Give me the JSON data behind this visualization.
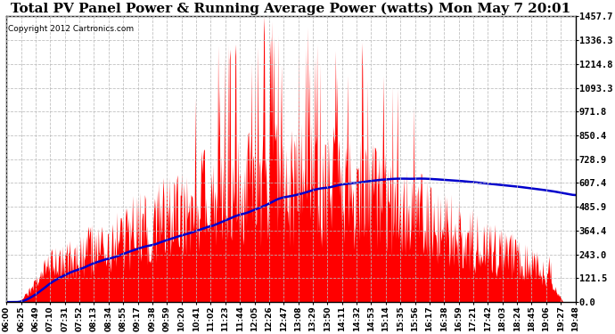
{
  "title": "Total PV Panel Power & Running Average Power (watts) Mon May 7 20:01",
  "copyright": "Copyright 2012 Cartronics.com",
  "background_color": "#ffffff",
  "plot_bg_color": "#ffffff",
  "fill_color": "#ff0000",
  "line_color": "#0000cc",
  "grid_color": "#bbbbbb",
  "yticks": [
    0.0,
    121.5,
    243.0,
    364.4,
    485.9,
    607.4,
    728.9,
    850.4,
    971.8,
    1093.3,
    1214.8,
    1336.3,
    1457.7
  ],
  "ylim": [
    0,
    1457.7
  ],
  "xtick_labels": [
    "06:00",
    "06:25",
    "06:49",
    "07:10",
    "07:31",
    "07:52",
    "08:13",
    "08:34",
    "08:55",
    "09:17",
    "09:38",
    "09:59",
    "10:20",
    "10:41",
    "11:02",
    "11:23",
    "11:44",
    "12:05",
    "12:26",
    "12:47",
    "13:08",
    "13:29",
    "13:50",
    "14:11",
    "14:32",
    "14:53",
    "15:14",
    "15:35",
    "15:56",
    "16:17",
    "16:38",
    "16:59",
    "17:21",
    "17:42",
    "18:03",
    "18:24",
    "18:45",
    "19:06",
    "19:27",
    "19:48"
  ],
  "title_fontsize": 11,
  "copyright_fontsize": 6.5,
  "tick_fontsize": 6.5,
  "ytick_fontsize": 7.5
}
